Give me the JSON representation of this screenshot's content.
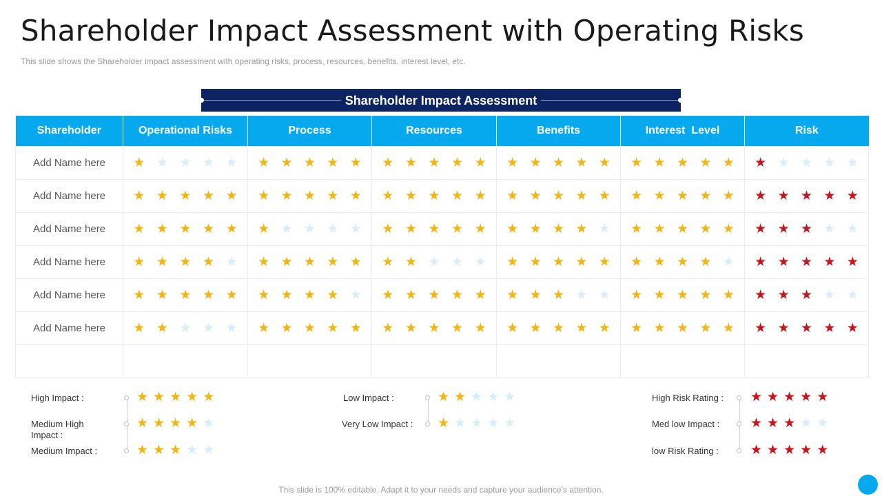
{
  "title": "Shareholder Impact Assessment with Operating Risks",
  "subtitle": "This slide shows the Shareholder impact assessment with operating risks, process, resources, benefits, interest level, etc.",
  "banner": "Shareholder Impact Assessment",
  "columns": [
    "Shareholder",
    "Operational Risks",
    "Process",
    "Resources",
    "Benefits",
    "Interest  Level",
    "Risk"
  ],
  "rows": [
    {
      "name": "Add Name here",
      "ratings": [
        1,
        5,
        5,
        5,
        5,
        1
      ]
    },
    {
      "name": "Add Name here",
      "ratings": [
        5,
        5,
        5,
        5,
        5,
        5
      ]
    },
    {
      "name": "Add Name here",
      "ratings": [
        5,
        1,
        5,
        4,
        5,
        3
      ]
    },
    {
      "name": "Add Name here",
      "ratings": [
        4,
        5,
        2,
        5,
        4,
        5
      ]
    },
    {
      "name": "Add Name here",
      "ratings": [
        5,
        4,
        5,
        3,
        5,
        3
      ]
    },
    {
      "name": "Add Name here",
      "ratings": [
        2,
        5,
        5,
        5,
        5,
        5
      ]
    }
  ],
  "legend": {
    "impact_left": [
      {
        "label": "High Impact :",
        "stars": 5
      },
      {
        "label": "Medium High Impact :",
        "stars": 4
      },
      {
        "label": "Medium Impact :",
        "stars": 3
      }
    ],
    "impact_mid": [
      {
        "label": "Low Impact :",
        "stars": 2
      },
      {
        "label": "Very Low Impact :",
        "stars": 1
      }
    ],
    "risk": [
      {
        "label": "High Risk Rating :",
        "stars": 5
      },
      {
        "label": "Med low Impact :",
        "stars": 3
      },
      {
        "label": "low Risk Rating :",
        "stars": 5
      }
    ]
  },
  "colors": {
    "impact_star": "#f3b512",
    "risk_star": "#c8151b",
    "empty_star": "#d6eefa",
    "header": "#06a8ee",
    "banner": "#0c2461"
  },
  "footer": "This slide is 100% editable. Adapt it to your needs and capture your audience’s attention."
}
